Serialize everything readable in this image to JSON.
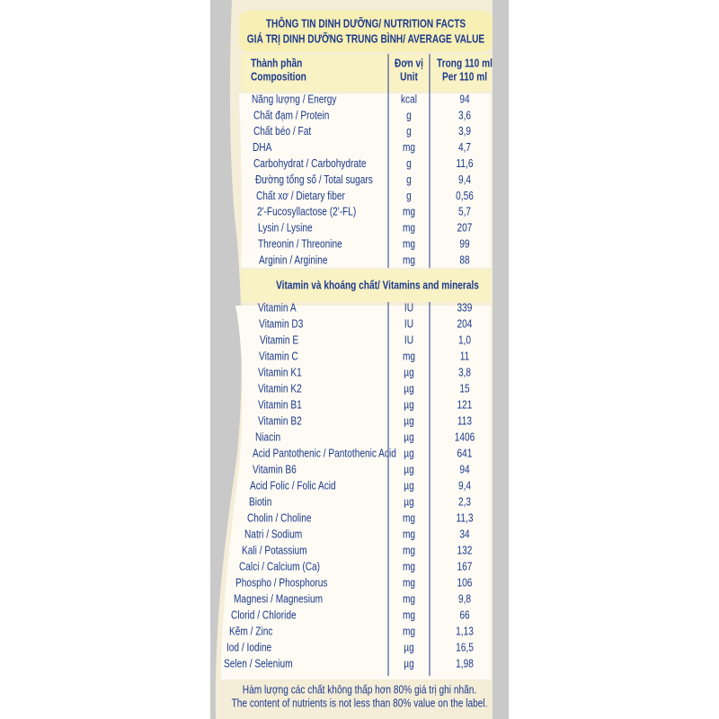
{
  "header": {
    "title": "THÔNG TIN DINH DƯỠNG/ NUTRITION FACTS",
    "subtitle": "GIÁ TRỊ DINH DƯỠNG TRUNG BÌNH/ AVERAGE VALUE"
  },
  "table": {
    "columns": [
      [
        "Thành phần",
        "Composition"
      ],
      [
        "Đơn vị",
        "Unit"
      ],
      [
        "Trong 110 ml",
        "Per 110 ml"
      ]
    ],
    "rows": [
      [
        "Năng lượng / Energy",
        "kcal",
        "94"
      ],
      [
        "Chất đạm / Protein",
        "g",
        "3,6"
      ],
      [
        "Chất béo / Fat",
        "g",
        "3,9"
      ],
      [
        "DHA",
        "mg",
        "4,7"
      ],
      [
        "Carbohydrat / Carbohydrate",
        "g",
        "11,6"
      ],
      [
        "Đường tổng số / Total sugars",
        "g",
        "9,4"
      ],
      [
        "Chất xơ / Dietary fiber",
        "g",
        "0,56"
      ],
      [
        "2'-Fucosyllactose (2'-FL)",
        "mg",
        "5,7"
      ],
      [
        "Lysin / Lysine",
        "mg",
        "207"
      ],
      [
        "Threonin / Threonine",
        "mg",
        "99"
      ],
      [
        "Arginin / Arginine",
        "mg",
        "88"
      ]
    ],
    "section": "Vitamin và khoáng chất/ Vitamins and minerals",
    "section_rows": [
      [
        "Vitamin A",
        "IU",
        "339"
      ],
      [
        "Vitamin D3",
        "IU",
        "204"
      ],
      [
        "Vitamin E",
        "IU",
        "1,0"
      ],
      [
        "Vitamin C",
        "mg",
        "11"
      ],
      [
        "Vitamin K1",
        "µg",
        "3,8"
      ],
      [
        "Vitamin K2",
        "µg",
        "15"
      ],
      [
        "Vitamin B1",
        "µg",
        "121"
      ],
      [
        "Vitamin B2",
        "µg",
        "113"
      ],
      [
        "Niacin",
        "µg",
        "1406"
      ],
      [
        "Acid Pantothenic / Pantothenic Acid",
        "µg",
        "641"
      ],
      [
        "Vitamin B6",
        "µg",
        "94"
      ],
      [
        "Acid Folic / Folic Acid",
        "µg",
        "9,4"
      ],
      [
        "Biotin",
        "µg",
        "2,3"
      ],
      [
        "Cholin / Choline",
        "mg",
        "11,3"
      ],
      [
        "Natri / Sodium",
        "mg",
        "34"
      ],
      [
        "Kali / Potassium",
        "mg",
        "132"
      ],
      [
        "Calci / Calcium (Ca)",
        "mg",
        "167"
      ],
      [
        "Phospho / Phosphorus",
        "mg",
        "106"
      ],
      [
        "Magnesi / Magnesium",
        "mg",
        "9,8"
      ],
      [
        "Clorid / Chloride",
        "mg",
        "66"
      ],
      [
        "Kẽm / Zinc",
        "mg",
        "1,13"
      ],
      [
        "Iod / Iodine",
        "µg",
        "16,5"
      ],
      [
        "Selen / Selenium",
        "µg",
        "1,98"
      ]
    ]
  },
  "footnote": [
    "Hàm lượng các chất không thấp hơn 80% giá trị ghi nhãn.",
    "The content of nutrients is not less than 80% value on the label."
  ]
}
